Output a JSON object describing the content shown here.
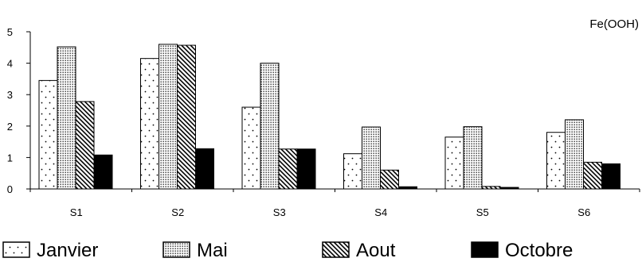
{
  "chart_data": {
    "type": "bar",
    "ylabel": "Fe(OOH)",
    "ylim": [
      0,
      5
    ],
    "yticks": [
      "0",
      "1",
      "2",
      "3",
      "4",
      "5"
    ],
    "categories": [
      "S1",
      "S2",
      "S3",
      "S4",
      "S5",
      "S6"
    ],
    "series": [
      {
        "name": "Janvier",
        "pattern": "dots-sparse",
        "values": [
          3.45,
          4.15,
          2.6,
          1.12,
          1.65,
          1.8
        ]
      },
      {
        "name": "Mai",
        "pattern": "dots-dense",
        "values": [
          4.52,
          4.6,
          4.0,
          1.97,
          1.98,
          2.2
        ]
      },
      {
        "name": "Aout",
        "pattern": "diagonal-hatch",
        "values": [
          2.78,
          4.57,
          1.27,
          0.6,
          0.08,
          0.85
        ]
      },
      {
        "name": "Octobre",
        "pattern": "solid-black",
        "values": [
          1.08,
          1.28,
          1.27,
          0.07,
          0.05,
          0.8
        ]
      }
    ],
    "grid": false,
    "legend_position": "bottom"
  }
}
